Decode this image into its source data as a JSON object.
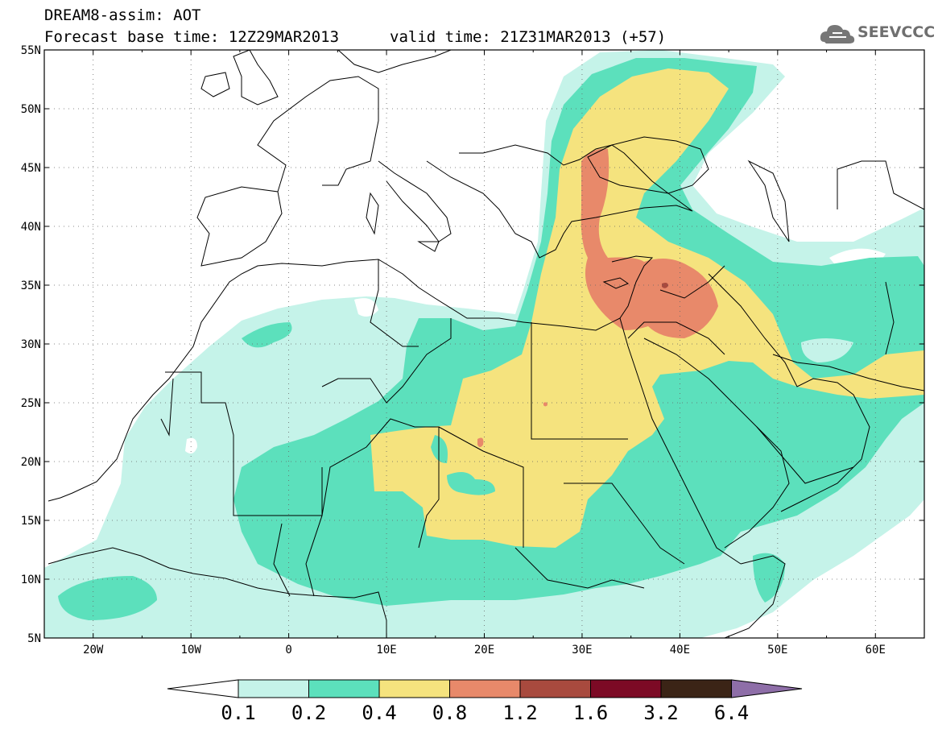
{
  "header": {
    "line1": "DREAM8-assim: AOT",
    "line2": "Forecast base time: 12Z29MAR2013",
    "line3": "valid time: 21Z31MAR2013 (+57)"
  },
  "logo": {
    "text": "SEEVCCC",
    "icon": "cloud-icon"
  },
  "map": {
    "lat_labels": [
      "55N",
      "50N",
      "45N",
      "40N",
      "35N",
      "30N",
      "25N",
      "20N",
      "15N",
      "10N",
      "5N"
    ],
    "lon_labels": [
      "20W",
      "10W",
      "0",
      "10E",
      "20E",
      "30E",
      "40E",
      "50E",
      "60E"
    ],
    "lat_range": [
      5,
      55
    ],
    "lon_range": [
      -25,
      65
    ],
    "grid": "dotted"
  },
  "colorbar": {
    "labels": [
      "0.1",
      "0.2",
      "0.4",
      "0.8",
      "1.2",
      "1.6",
      "3.2",
      "6.4"
    ],
    "colors": [
      "#ffffff",
      "#c5f3e9",
      "#5ce0bc",
      "#f5e37e",
      "#e8896a",
      "#a84a3e",
      "#7c0a25",
      "#3b2416",
      "#8e6ea8"
    ]
  }
}
